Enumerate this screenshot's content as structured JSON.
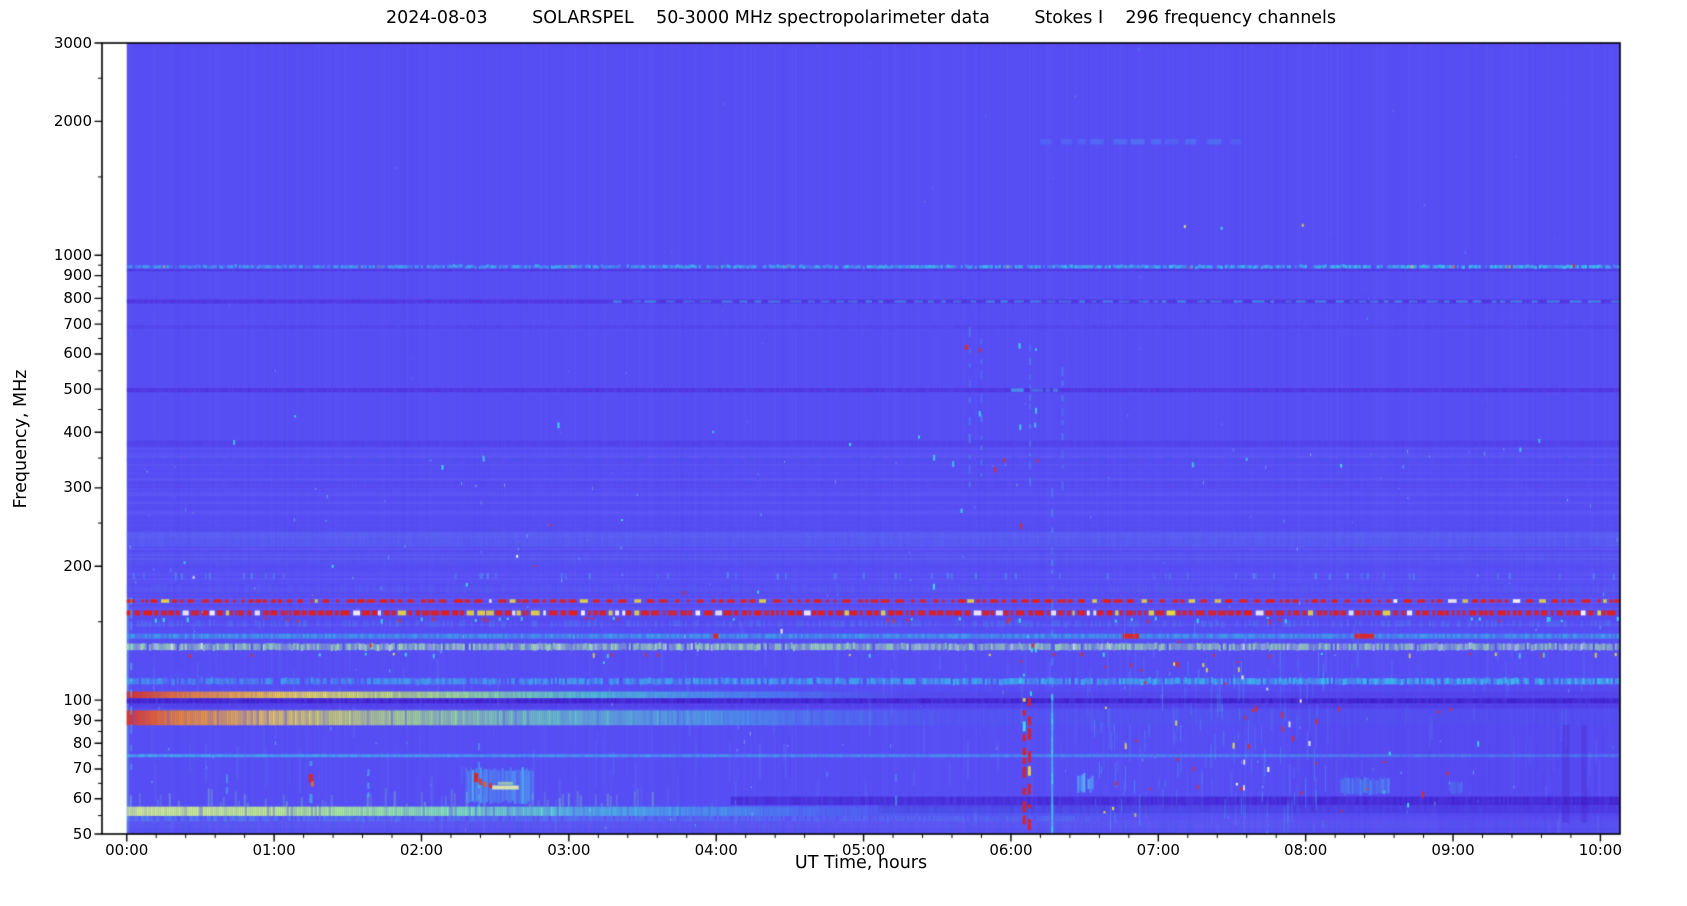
{
  "figure": {
    "title": "2024-08-03        SOLARSPEL    50-3000 MHz spectropolarimeter data        Stokes I    296 frequency channels"
  },
  "chart_data": {
    "type": "heatmap",
    "title": "2024-08-03        SOLARSPEL    50-3000 MHz spectropolarimeter data        Stokes I    296 frequency channels",
    "title_parts": {
      "date": "2024-08-03",
      "instrument": "SOLARSPEL",
      "band": "50-3000 MHz spectropolarimeter data",
      "stokes": "Stokes I",
      "channels": "296 frequency channels"
    },
    "xlabel": "UT Time, hours",
    "ylabel": "Frequency, MHz",
    "axes": {
      "xlim": [
        -0.168,
        10.133
      ],
      "ylim": [
        50,
        3000
      ],
      "y_scale": "log",
      "data_start_hour": 0,
      "x_minor_interval_hours": 0.2,
      "x_ticks": [
        {
          "h": 0,
          "label": "00:00"
        },
        {
          "h": 1,
          "label": "01:00"
        },
        {
          "h": 2,
          "label": "02:00"
        },
        {
          "h": 3,
          "label": "03:00"
        },
        {
          "h": 4,
          "label": "04:00"
        },
        {
          "h": 5,
          "label": "05:00"
        },
        {
          "h": 6,
          "label": "06:00"
        },
        {
          "h": 7,
          "label": "07:00"
        },
        {
          "h": 8,
          "label": "08:00"
        },
        {
          "h": 9,
          "label": "09:00"
        },
        {
          "h": 10,
          "label": "10:00"
        }
      ],
      "y_ticks_labeled": [
        3000,
        2000,
        1000,
        900,
        800,
        700,
        600,
        500,
        400,
        300,
        200,
        100,
        90,
        80,
        70,
        60,
        50
      ],
      "y_ticks_minor": [
        2500,
        1500,
        950,
        850,
        750,
        650,
        550,
        450,
        350,
        250,
        150,
        95,
        85,
        75,
        65,
        55
      ]
    },
    "style": {
      "base": "#5148f4",
      "frame": "#000000"
    },
    "bands": [
      {
        "name": "faint-line-1800MHz",
        "f": [
          1775,
          1825
        ],
        "t": [
          6.2,
          7.55
        ],
        "kind": "dash",
        "color": "#40c8f0",
        "alpha": 0.22
      },
      {
        "name": "gsm-940MHz-cyan-speckle",
        "f": [
          934,
          950
        ],
        "kind": "speckle",
        "color": "#30dce8",
        "alpha": 0.5,
        "rampR": 1.7,
        "cov": 0.85,
        "hot_specks": 0.02
      },
      {
        "name": "purple-928MHz",
        "f": [
          920,
          932
        ],
        "kind": "solid",
        "color": "#4c1ccc",
        "alpha": 0.4
      },
      {
        "name": "purple-788MHz",
        "f": [
          779,
          796
        ],
        "kind": "solid",
        "color": "#4c1ccc",
        "alpha": 0.45
      },
      {
        "name": "cyan-788MHz-late",
        "f": [
          782,
          792
        ],
        "t": [
          3.3,
          10.133
        ],
        "kind": "dash",
        "color": "#36d8ec",
        "alpha": 0.4,
        "rampR": 1.5
      },
      {
        "name": "faint-690MHz",
        "f": [
          683,
          697
        ],
        "kind": "solid",
        "color": "#4c24cc",
        "alpha": 0.18
      },
      {
        "name": "purple-498MHz",
        "f": [
          492,
          503
        ],
        "kind": "solid",
        "color": "#4c1ccc",
        "alpha": 0.45
      },
      {
        "name": "cyan-498MHz-0610",
        "f": [
          493,
          502
        ],
        "t": [
          6.0,
          6.3
        ],
        "kind": "dash",
        "color": "#38e0e8",
        "alpha": 0.45
      },
      {
        "name": "purple-377MHz",
        "f": [
          372,
          383
        ],
        "kind": "solid",
        "color": "#4c24cc",
        "alpha": 0.26
      },
      {
        "name": "dash-349MHz",
        "f": [
          345,
          353
        ],
        "kind": "dash",
        "color": "#4654e8",
        "alpha": 0.3
      },
      {
        "name": "fuzzy-305MHz",
        "f": [
          299,
          311
        ],
        "kind": "solid",
        "color": "#4a2ad8",
        "alpha": 0.16
      },
      {
        "name": "light-230MHz",
        "f": [
          221,
          239
        ],
        "kind": "solid",
        "color": "#5a74f2",
        "alpha": 0.35
      },
      {
        "name": "light-208MHz",
        "f": [
          202,
          215
        ],
        "kind": "solid",
        "color": "#5668f0",
        "alpha": 0.22
      },
      {
        "name": "sparse-190MHz",
        "f": [
          187,
          193
        ],
        "kind": "speckle",
        "color": "#38dce8",
        "alpha": 0.35,
        "cov": 0.08
      },
      {
        "name": "fuzzy-178MHz",
        "f": [
          174,
          182
        ],
        "kind": "speckle",
        "color": "#5468ee",
        "alpha": 0.3,
        "cov": 0.6
      },
      {
        "name": "rfi-167MHz-red-dashed",
        "f": [
          165.5,
          168.5
        ],
        "kind": "rfi",
        "cov": 0.52
      },
      {
        "name": "rfi-157MHz-red-dense",
        "f": [
          155,
          159
        ],
        "kind": "rfi",
        "cov": 0.88
      },
      {
        "name": "ticks-152MHz",
        "f": [
          150,
          154
        ],
        "kind": "ticks",
        "colors": [
          "#e82818",
          "#38e0e8"
        ],
        "density": 0.06
      },
      {
        "name": "speckle-149MHz",
        "f": [
          146,
          151
        ],
        "kind": "speckle",
        "color": "#44b0e8",
        "alpha": 0.22,
        "cov": 0.5
      },
      {
        "name": "cyan-139MHz-with-red",
        "f": [
          137.5,
          141
        ],
        "kind": "speckle-red",
        "color": "#2cd8e0",
        "alpha": 0.55
      },
      {
        "name": "green-132MHz",
        "f": [
          129.5,
          134
        ],
        "kind": "speckle",
        "color": "#aaf2a2",
        "alpha": 0.8,
        "rampR": 0.8,
        "cov": 0.95,
        "white": 0.06
      },
      {
        "name": "red-dots-127MHz",
        "f": [
          125.5,
          128
        ],
        "kind": "ticks",
        "colors": [
          "#e82818",
          "#38e0e8",
          "#f0e040"
        ],
        "density": 0.035
      },
      {
        "name": "cyan-110MHz",
        "f": [
          108.5,
          112
        ],
        "kind": "speckle",
        "color": "#30d8e8",
        "alpha": 0.5,
        "rampR": 1.5,
        "cov": 0.85
      },
      {
        "name": "hot-103MHz",
        "f": [
          101,
          104.5
        ],
        "kind": "hot",
        "stops": [
          [
            0,
            "#e02818",
            0.95
          ],
          [
            0.35,
            "#f07828",
            0.9
          ],
          [
            1.2,
            "#f0dc50",
            0.85
          ],
          [
            2.2,
            "#a8ee80",
            0.78
          ],
          [
            3.2,
            "#48e0c8",
            0.65
          ],
          [
            4.3,
            "#38b8e8",
            0.4
          ],
          [
            5.3,
            "#5040e0",
            0.3
          ],
          [
            10.133,
            "#5038e0",
            0.35
          ]
        ]
      },
      {
        "name": "indigo-100MHz",
        "f": [
          98.3,
          100.9
        ],
        "kind": "solid",
        "color": "#3a10c0",
        "alpha": 0.65
      },
      {
        "name": "purple-97MHz",
        "f": [
          95.8,
          98.3
        ],
        "kind": "solid",
        "color": "#4c28d4",
        "alpha": 0.3
      },
      {
        "name": "hot-fm-91MHz",
        "f": [
          87.8,
          94.8
        ],
        "kind": "hot",
        "speckle": true,
        "stops": [
          [
            0,
            "#e83018",
            0.92
          ],
          [
            0.3,
            "#f08028",
            0.85
          ],
          [
            0.95,
            "#f0c850",
            0.78
          ],
          [
            1.9,
            "#b4ee7c",
            0.7
          ],
          [
            2.9,
            "#6ce8b4",
            0.6
          ],
          [
            4.2,
            "#40c8e0",
            0.42
          ],
          [
            5.6,
            "#4a62e8",
            0.25
          ],
          [
            10.133,
            "#4a58e8",
            0.22
          ]
        ]
      },
      {
        "name": "cyan-line-75MHz",
        "f": [
          74.4,
          75.6
        ],
        "kind": "solid",
        "color": "#38d8e8",
        "alpha": 0.55,
        "rampR": 0.45
      },
      {
        "name": "green-streaks-60MHz-early",
        "f": [
          57.6,
          62.5
        ],
        "t": [
          0,
          3.6
        ],
        "kind": "streaks",
        "color": "#84e8a4",
        "alpha": 0.3
      },
      {
        "name": "dark-59MHz-late",
        "f": [
          58.1,
          60.7
        ],
        "t": [
          4.1,
          10.133
        ],
        "kind": "solid",
        "color": "#3c14c4",
        "alpha": 0.45,
        "rampR": 1.25
      },
      {
        "name": "dark-57MHz-late",
        "f": [
          55.7,
          58.1
        ],
        "t": [
          5.1,
          10.133
        ],
        "kind": "solid",
        "color": "#4420cc",
        "alpha": 0.28,
        "rampR": 1.2
      },
      {
        "name": "bright-56MHz",
        "f": [
          54.9,
          57.6
        ],
        "kind": "hot",
        "speckle": true,
        "stops": [
          [
            0,
            "#d8f48c",
            0.95
          ],
          [
            1.0,
            "#c0f28a",
            0.92
          ],
          [
            2.2,
            "#84eeb0",
            0.8
          ],
          [
            3.2,
            "#48d8dc",
            0.62
          ],
          [
            4.3,
            "#3cb8e8",
            0.4
          ],
          [
            5.1,
            "#3aa0e8",
            0.15
          ],
          [
            10.133,
            "#4048e0",
            0.05
          ]
        ]
      },
      {
        "name": "cyan-fringe-54MHz",
        "f": [
          53.4,
          54.9
        ],
        "t": [
          0,
          6.6
        ],
        "kind": "speckle",
        "color": "#40c4e8",
        "alpha": 0.32,
        "rampR": 0.5,
        "cov": 0.8
      },
      {
        "name": "speckle-52MHz",
        "f": [
          50,
          53.4
        ],
        "kind": "speckle",
        "color": "#4858ea",
        "alpha": 0.3,
        "cov": 0.6
      }
    ],
    "events": [
      {
        "type": "vdash",
        "t": 0.03,
        "f": [
          70,
          170
        ],
        "color": "#48e0e8",
        "alpha": 0.4,
        "w": 2
      },
      {
        "type": "vdash",
        "t": 0.68,
        "f": [
          59,
          68
        ],
        "color": "#40d8e8",
        "alpha": 0.4,
        "w": 2
      },
      {
        "type": "vdash",
        "t": 1.25,
        "f": [
          58,
          73
        ],
        "color": "#40d8e8",
        "alpha": 0.5,
        "w": 3
      },
      {
        "type": "speck",
        "t": 1.25,
        "f": 66.8,
        "color": "#e82010",
        "w": 4,
        "hh": 8
      },
      {
        "type": "speck",
        "t": 1.26,
        "f": 64.8,
        "color": "#f06828",
        "w": 3,
        "hh": 5
      },
      {
        "type": "vdash",
        "t": 1.64,
        "f": [
          61,
          70
        ],
        "color": "#40d8e8",
        "alpha": 0.45,
        "w": 2
      },
      {
        "type": "blob",
        "t": [
          2.3,
          2.75
        ],
        "f": [
          59,
          70
        ],
        "color": "#44d8e8",
        "alpha": 0.4
      },
      {
        "type": "vdash",
        "t": 2.39,
        "f": [
          58,
          80
        ],
        "color": "#48e0e8",
        "alpha": 0.5,
        "w": 2
      },
      {
        "type": "speck",
        "t": 2.37,
        "f": 67,
        "color": "#e82010",
        "w": 4,
        "hh": 9
      },
      {
        "type": "speck",
        "t": 2.4,
        "f": 65.5,
        "color": "#e83818",
        "w": 3,
        "hh": 6
      },
      {
        "type": "speck",
        "t": 2.43,
        "f": 64.6,
        "color": "#f05820",
        "w": 3,
        "hh": 5
      },
      {
        "type": "speck",
        "t": 2.47,
        "f": 64.2,
        "color": "#e82818",
        "w": 3,
        "hh": 5
      },
      {
        "type": "hline",
        "t": [
          2.48,
          2.66
        ],
        "f": 63.6,
        "color": "#eef4a0",
        "alpha": 0.85,
        "hh": 4
      },
      {
        "type": "hline",
        "t": [
          2.52,
          2.62
        ],
        "f": 65.0,
        "color": "#c8f090",
        "alpha": 0.6,
        "hh": 3
      },
      {
        "type": "vdash",
        "t": 5.22,
        "f": [
          59,
          68
        ],
        "color": "#40d8e8",
        "alpha": 0.4,
        "w": 2
      },
      {
        "type": "speck",
        "t": 5.7,
        "f": 621,
        "color": "#e82818",
        "w": 3,
        "hh": 5
      },
      {
        "type": "speck",
        "t": 5.79,
        "f": 612,
        "color": "#e82818",
        "w": 2,
        "hh": 4
      },
      {
        "type": "vdash",
        "t": 5.72,
        "f": [
          300,
          690
        ],
        "color": "#38d0e8",
        "alpha": 0.3,
        "w": 2
      },
      {
        "type": "vdash",
        "t": 5.8,
        "f": [
          320,
          650
        ],
        "color": "#38d0e8",
        "alpha": 0.28,
        "w": 2
      },
      {
        "type": "vdash",
        "t": 6.13,
        "f": [
          290,
          630
        ],
        "color": "#38d0e8",
        "alpha": 0.3,
        "w": 2
      },
      {
        "type": "vdash",
        "t": 6.35,
        "f": [
          300,
          560
        ],
        "color": "#38d0e8",
        "alpha": 0.25,
        "w": 2
      },
      {
        "type": "redcol",
        "t": 6.09,
        "f": [
          50,
          101
        ],
        "w": 3
      },
      {
        "type": "redcol",
        "t": 6.125,
        "f": [
          50,
          101
        ],
        "w": 3
      },
      {
        "type": "cluster",
        "t": [
          6.05,
          6.17
        ],
        "f": [
          100,
          140
        ],
        "n": 8,
        "colors": [
          "#e82818",
          "#38e0e8"
        ]
      },
      {
        "type": "vline",
        "t": 6.28,
        "f": [
          50,
          103
        ],
        "color": "#38e8e0",
        "alpha": 0.7,
        "w": 2
      },
      {
        "type": "vdash",
        "t": 6.28,
        "f": [
          103,
          300
        ],
        "color": "#38e0e0",
        "alpha": 0.25,
        "w": 2
      },
      {
        "type": "blob",
        "t": [
          6.45,
          6.5
        ],
        "f": [
          62.5,
          68
        ],
        "color": "#50f0f0",
        "alpha": 0.6
      },
      {
        "type": "blob",
        "t": [
          6.52,
          6.56
        ],
        "f": [
          62.5,
          67
        ],
        "color": "#50f0f0",
        "alpha": 0.55
      },
      {
        "type": "forest",
        "t": [
          6.55,
          7.58
        ],
        "f": [
          50,
          140
        ],
        "n": 60,
        "color": "#38d0e8",
        "alpha": 0.32
      },
      {
        "type": "cluster",
        "t": [
          6.6,
          7.6
        ],
        "f": [
          55,
          140
        ],
        "n": 26,
        "colors": [
          "#e82818",
          "#e82818",
          "#f0e040"
        ]
      },
      {
        "type": "forest",
        "t": [
          7.5,
          8.14
        ],
        "f": [
          50,
          118
        ],
        "n": 42,
        "color": "#38d0e8",
        "alpha": 0.3
      },
      {
        "type": "cluster",
        "t": [
          7.5,
          8.14
        ],
        "f": [
          55,
          115
        ],
        "n": 20,
        "colors": [
          "#e82818",
          "#e82818",
          "#ffffff"
        ]
      },
      {
        "type": "cluster",
        "t": [
          8.2,
          9.3
        ],
        "f": [
          55,
          105
        ],
        "n": 12,
        "colors": [
          "#e82818",
          "#38e0e8"
        ]
      },
      {
        "type": "blob",
        "t": [
          8.23,
          8.56
        ],
        "f": [
          61.5,
          66.5
        ],
        "color": "#40c8e8",
        "alpha": 0.38
      },
      {
        "type": "blob",
        "t": [
          8.97,
          9.06
        ],
        "f": [
          62,
          65.5
        ],
        "color": "#40b8e8",
        "alpha": 0.28
      },
      {
        "type": "vdark",
        "t": [
          9.74,
          9.79
        ],
        "f": [
          53,
          88
        ],
        "color": "#3818b8",
        "alpha": 0.22
      },
      {
        "type": "vdark",
        "t": [
          9.87,
          9.91
        ],
        "f": [
          53,
          88
        ],
        "color": "#3818b8",
        "alpha": 0.22
      },
      {
        "type": "speck",
        "t": 7.18,
        "f": 1160,
        "color": "#e8e060",
        "w": 2,
        "hh": 3
      },
      {
        "type": "speck",
        "t": 7.43,
        "f": 1150,
        "color": "#38e0e8",
        "w": 2,
        "hh": 3
      },
      {
        "type": "speck",
        "t": 7.98,
        "f": 1168,
        "color": "#e8c850",
        "w": 2,
        "hh": 3
      },
      {
        "type": "cluster",
        "t": [
          5.6,
          6.2
        ],
        "f": [
          230,
          640
        ],
        "n": 10,
        "colors": [
          "#e82818",
          "#38e0e8"
        ]
      },
      {
        "type": "cluster",
        "t": [
          0.2,
          5.5
        ],
        "f": [
          120,
          260
        ],
        "n": 14,
        "colors": [
          "#38e0e8",
          "#ffffff",
          "#e82818"
        ]
      },
      {
        "type": "cluster",
        "t": [
          0.1,
          10.1
        ],
        "f": [
          330,
          470
        ],
        "n": 16,
        "colors": [
          "#38e0e8"
        ]
      }
    ]
  }
}
